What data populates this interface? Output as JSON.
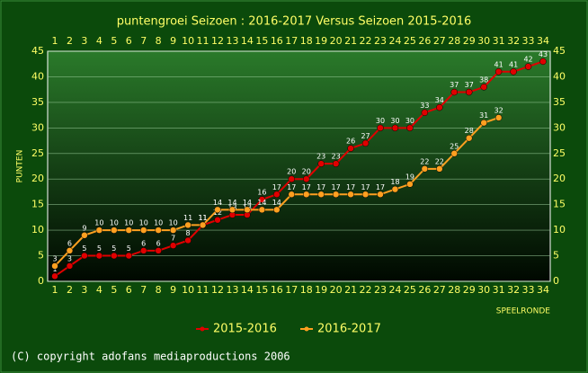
{
  "chart_data": {
    "type": "line",
    "title": "puntengroei Seizoen : 2016-2017 Versus Seizoen 2015-2016",
    "x_label": "SPEELRONDE",
    "y_label": "PUNTEN",
    "categories": [
      "1",
      "2",
      "3",
      "4",
      "5",
      "6",
      "7",
      "8",
      "9",
      "10",
      "11",
      "12",
      "13",
      "14",
      "15",
      "16",
      "17",
      "18",
      "19",
      "20",
      "21",
      "22",
      "23",
      "24",
      "25",
      "26",
      "27",
      "28",
      "29",
      "30",
      "31",
      "32",
      "33",
      "34"
    ],
    "series": [
      {
        "name": "2015-2016",
        "color": "#e00000",
        "values": [
          1,
          3,
          5,
          5,
          5,
          5,
          6,
          6,
          7,
          8,
          11,
          12,
          13,
          13,
          16,
          17,
          20,
          20,
          23,
          23,
          26,
          27,
          30,
          30,
          30,
          33,
          34,
          37,
          37,
          38,
          41,
          41,
          42,
          43
        ]
      },
      {
        "name": "2016-2017",
        "color": "#ffa020",
        "values": [
          3,
          6,
          9,
          10,
          10,
          10,
          10,
          10,
          10,
          11,
          11,
          14,
          14,
          14,
          14,
          14,
          17,
          17,
          17,
          17,
          17,
          17,
          17,
          18,
          19,
          22,
          22,
          25,
          28,
          31,
          32,
          null,
          null,
          null
        ]
      }
    ],
    "ylim": [
      0,
      45
    ],
    "yticks": [
      0,
      5,
      10,
      15,
      20,
      25,
      30,
      35,
      40,
      45
    ],
    "grid": true,
    "copyright": "(C) copyright adofans mediaproductions 2006"
  }
}
